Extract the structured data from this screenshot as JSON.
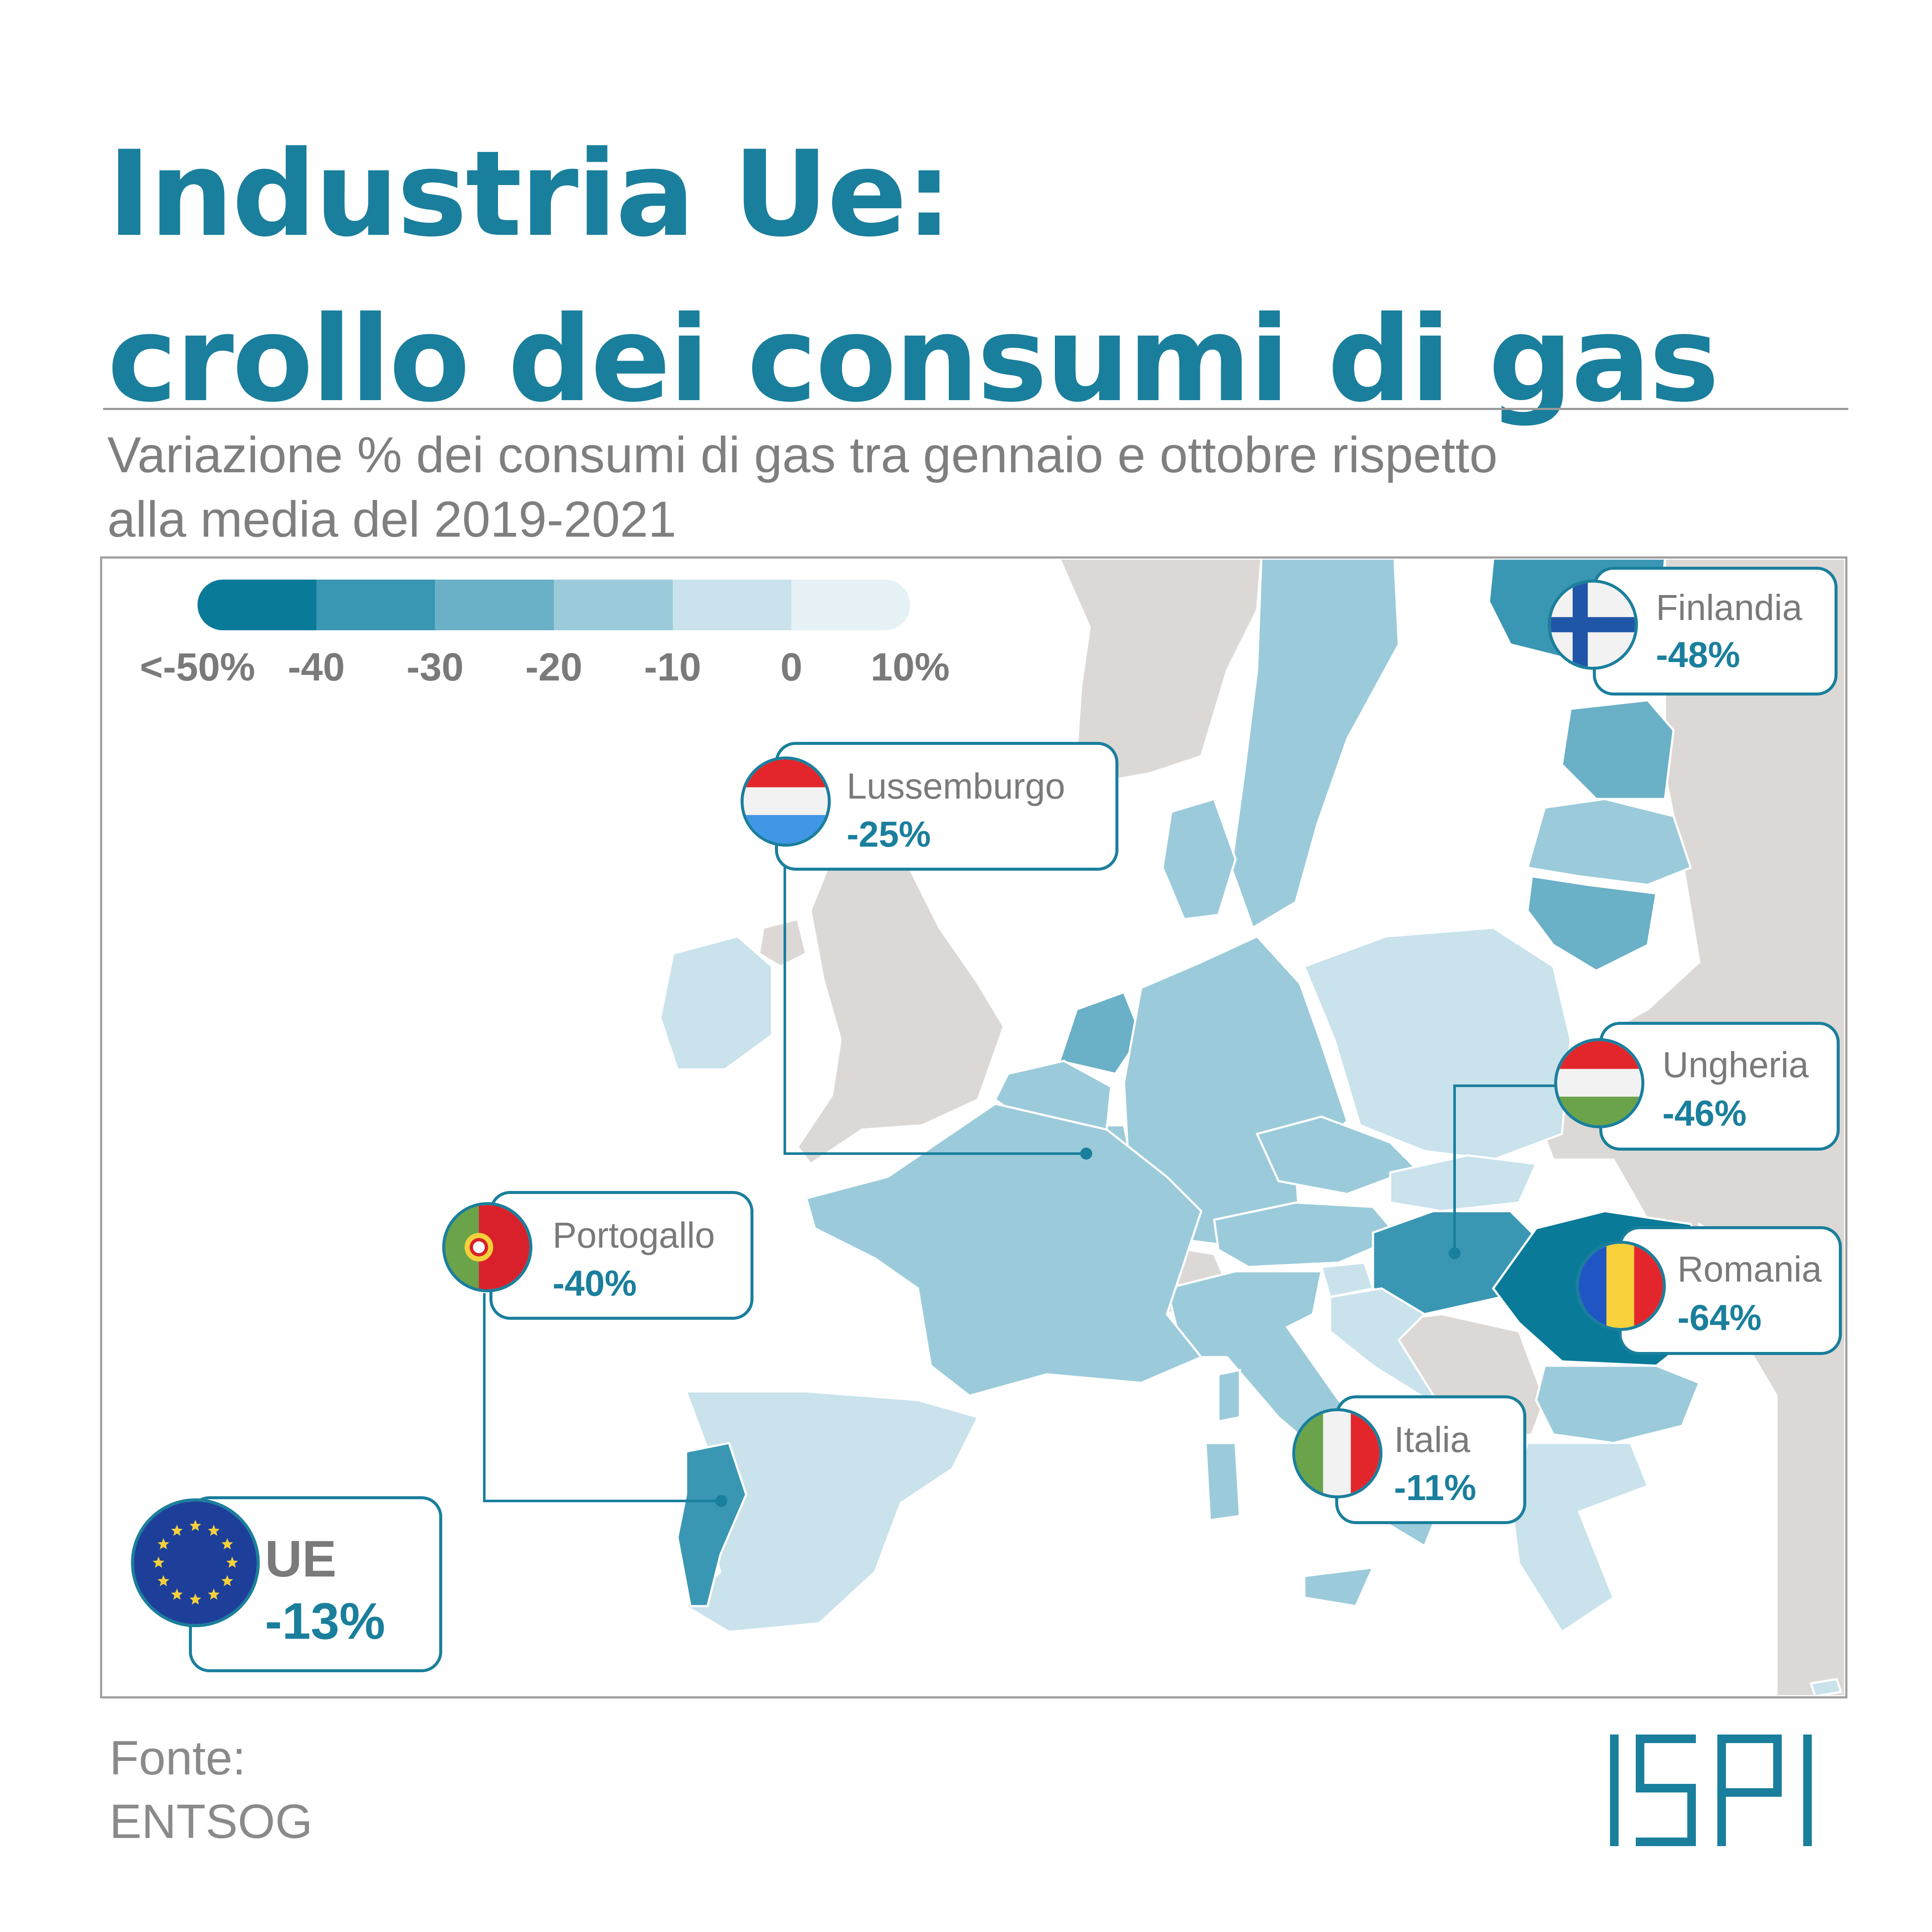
{
  "header": {
    "title_line1": "Industria Ue:",
    "title_line2": "crollo dei consumi di gas",
    "subtitle_line1": "Variazione % dei consumi di gas tra gennaio e ottobre rispetto",
    "subtitle_line2": "alla media del 2019-2021"
  },
  "legend": {
    "ticks": [
      "<-50%",
      "-40",
      "-30",
      "-20",
      "-10",
      "0",
      "10%"
    ],
    "colors": [
      "#0a7a99",
      "#3a97b3",
      "#6ab0c7",
      "#9bcbda",
      "#c9e2ec",
      "#e6f1f6"
    ]
  },
  "callouts": {
    "finlandia": {
      "name": "Finlandia",
      "value": "-48%"
    },
    "lussemburgo": {
      "name": "Lussemburgo",
      "value": "-25%"
    },
    "ungheria": {
      "name": "Ungheria",
      "value": "-46%"
    },
    "portogallo": {
      "name": "Portogallo",
      "value": "-40%"
    },
    "romania": {
      "name": "Romania",
      "value": "-64%"
    },
    "italia": {
      "name": "Italia",
      "value": "-11%"
    },
    "ue": {
      "name": "UE",
      "value": "-13%"
    }
  },
  "colors": {
    "accent": "#1a7f9c",
    "non_eu": "#dcd8d5",
    "text_gray": "#7a7a7a"
  },
  "footer": {
    "source_label": "Fonte:",
    "source_value": "ENTSOG",
    "logo": "ISPI"
  }
}
